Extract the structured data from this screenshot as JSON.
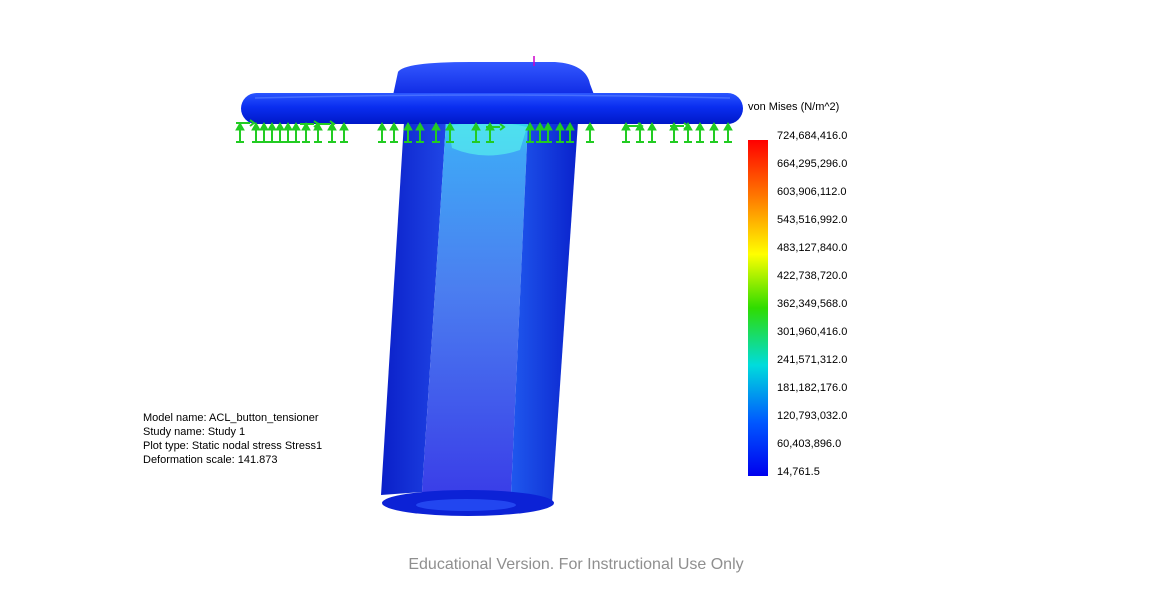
{
  "model_info": {
    "model_name": "Model name: ACL_button_tensioner",
    "study_name": "Study name: Study 1",
    "plot_type": "Plot type: Static nodal stress Stress1",
    "deformation_scale": "Deformation scale: 141.873"
  },
  "legend": {
    "title": "von Mises (N/m^2)",
    "ticks": [
      "724,684,416.0",
      "664,295,296.0",
      "603,906,112.0",
      "543,516,992.0",
      "483,127,840.0",
      "422,738,720.0",
      "362,349,568.0",
      "301,960,416.0",
      "241,571,312.0",
      "181,182,176.0",
      "120,793,032.0",
      "60,403,896.0",
      "14,761.5"
    ],
    "colors": [
      "#ff0000",
      "#ff7a00",
      "#ffff00",
      "#2fdc00",
      "#00dcdc",
      "#0058ff",
      "#0000ee"
    ]
  },
  "watermark": "Educational Version. For Instructional Use Only"
}
